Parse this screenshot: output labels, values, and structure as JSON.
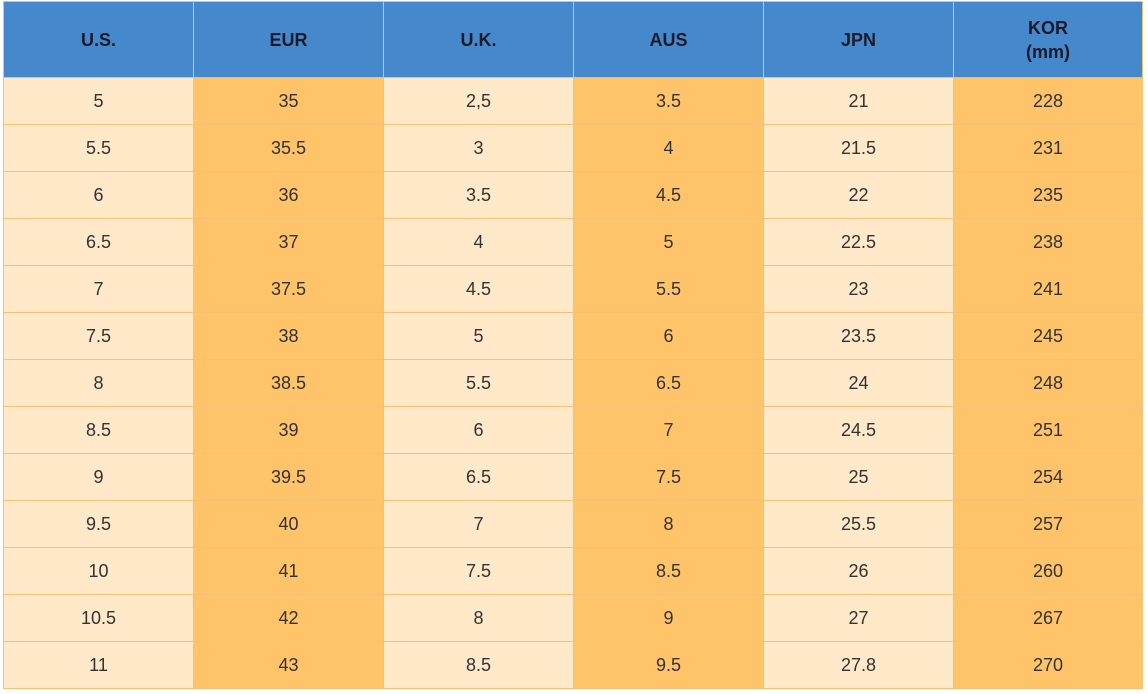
{
  "table": {
    "header": [
      "U.S.",
      "EUR",
      "U.K.",
      "AUS",
      "JPN",
      [
        "KOR",
        "(mm)"
      ]
    ],
    "rows": [
      [
        "5",
        "35",
        "2,5",
        "3.5",
        "21",
        "228"
      ],
      [
        "5.5",
        "35.5",
        "3",
        "4",
        "21.5",
        "231"
      ],
      [
        "6",
        "36",
        "3.5",
        "4.5",
        "22",
        "235"
      ],
      [
        "6.5",
        "37",
        "4",
        "5",
        "22.5",
        "238"
      ],
      [
        "7",
        "37.5",
        "4.5",
        "5.5",
        "23",
        "241"
      ],
      [
        "7.5",
        "38",
        "5",
        "6",
        "23.5",
        "245"
      ],
      [
        "8",
        "38.5",
        "5.5",
        "6.5",
        "24",
        "248"
      ],
      [
        "8.5",
        "39",
        "6",
        "7",
        "24.5",
        "251"
      ],
      [
        "9",
        "39.5",
        "6.5",
        "7.5",
        "25",
        "254"
      ],
      [
        "9.5",
        "40",
        "7",
        "8",
        "25.5",
        "257"
      ],
      [
        "10",
        "41",
        "7.5",
        "8.5",
        "26",
        "260"
      ],
      [
        "10.5",
        "42",
        "8",
        "9",
        "27",
        "267"
      ],
      [
        "11",
        "43",
        "8.5",
        "9.5",
        "27.8",
        "270"
      ]
    ]
  }
}
